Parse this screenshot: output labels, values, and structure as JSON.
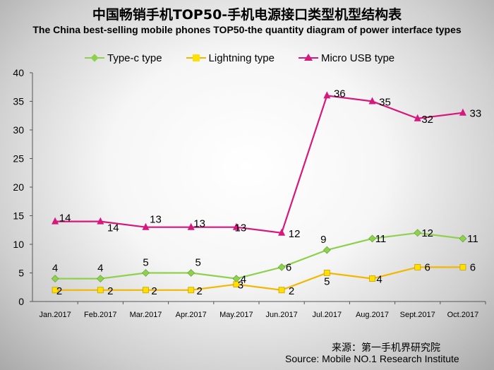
{
  "chart_data": {
    "type": "line",
    "title": "中国畅销手机TOP50-手机电源接口类型机型结构表",
    "subtitle": "The China best-selling mobile phones TOP50-the quantity diagram of power interface types",
    "categories": [
      "Jan.2017",
      "Feb.2017",
      "Mar.2017",
      "Apr.2017",
      "May.2017",
      "Jun.2017",
      "Jul.2017",
      "Aug.2017",
      "Sept.2017",
      "Oct.2017"
    ],
    "ylim": [
      0,
      40
    ],
    "yticks": [
      0,
      5,
      10,
      15,
      20,
      25,
      30,
      35,
      40
    ],
    "grid": false,
    "legend_position": "top",
    "series": [
      {
        "name": "Type-c type",
        "color": "#8fd14f",
        "marker": "diamond",
        "values": [
          4,
          4,
          5,
          5,
          4,
          6,
          9,
          11,
          12,
          11
        ]
      },
      {
        "name": "Lightning type",
        "color": "#f2b700",
        "marker": "square",
        "values": [
          2,
          2,
          2,
          2,
          3,
          2,
          5,
          4,
          6,
          6
        ]
      },
      {
        "name": "Micro USB type",
        "color": "#d6177c",
        "marker": "triangle",
        "values": [
          14,
          14,
          13,
          13,
          13,
          12,
          36,
          35,
          32,
          33
        ]
      }
    ]
  },
  "source": {
    "cn": "来源：第一手机界研究院",
    "en": "Source: Mobile NO.1 Research Institute"
  }
}
